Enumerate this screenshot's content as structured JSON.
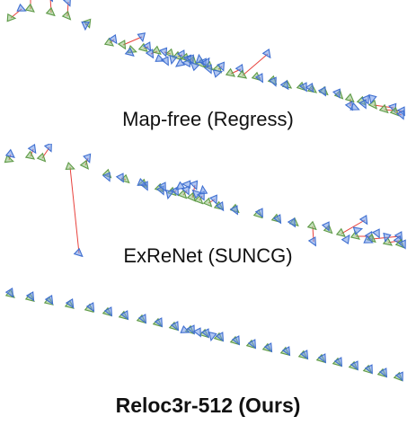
{
  "figure": {
    "colors": {
      "gt": "#8fc27a",
      "gt_edge": "#5f9a48",
      "pred": "#6f97e8",
      "pred_edge": "#3f6fd0",
      "error_line": "#e8413c"
    },
    "panels": [
      {
        "id": "map-free",
        "caption": "Map-free (Regress)",
        "caption_weight": "regular",
        "trajectory": [
          [
            12,
            20,
            24,
            10
          ],
          [
            34,
            10,
            34,
            -8
          ],
          [
            57,
            14,
            56,
            -3
          ],
          [
            75,
            18,
            76,
            2
          ],
          [
            98,
            26,
            95,
            28
          ],
          [
            122,
            48,
            127,
            44
          ],
          [
            137,
            50,
            158,
            41
          ],
          [
            147,
            56,
            145,
            59
          ],
          [
            160,
            54,
            165,
            52
          ],
          [
            175,
            57,
            168,
            60
          ],
          [
            190,
            60,
            183,
            58
          ],
          [
            198,
            63,
            203,
            61
          ],
          [
            207,
            65,
            210,
            66
          ],
          [
            215,
            68,
            213,
            66
          ],
          [
            224,
            71,
            227,
            70
          ],
          [
            233,
            74,
            233,
            77
          ],
          [
            243,
            77,
            247,
            74
          ],
          [
            257,
            82,
            268,
            77
          ],
          [
            270,
            84,
            298,
            60
          ],
          [
            286,
            86,
            290,
            87
          ],
          [
            304,
            90,
            305,
            91
          ],
          [
            320,
            95,
            318,
            95
          ],
          [
            336,
            97,
            339,
            97
          ],
          [
            348,
            100,
            346,
            98
          ],
          [
            361,
            102,
            360,
            102
          ],
          [
            378,
            106,
            376,
            104
          ],
          [
            390,
            110,
            390,
            118
          ],
          [
            403,
            113,
            408,
            111
          ],
          [
            416,
            117,
            438,
            120
          ],
          [
            428,
            122,
            448,
            124
          ],
          [
            440,
            125,
            447,
            128
          ]
        ],
        "extra_pred": [
          [
            178,
            66
          ],
          [
            185,
            68
          ],
          [
            192,
            66
          ],
          [
            200,
            71
          ],
          [
            208,
            70
          ],
          [
            216,
            73
          ],
          [
            222,
            66
          ],
          [
            230,
            69
          ],
          [
            242,
            81
          ],
          [
            395,
            120
          ],
          [
            405,
            116
          ],
          [
            414,
            110
          ]
        ]
      },
      {
        "id": "exrenet",
        "caption": "ExReNet (SUNCG)",
        "caption_weight": "regular",
        "trajectory": [
          [
            10,
            18,
            12,
            12
          ],
          [
            34,
            14,
            37,
            6
          ],
          [
            47,
            16,
            55,
            4
          ],
          [
            78,
            26,
            88,
            122
          ],
          [
            95,
            24,
            98,
            16
          ],
          [
            120,
            34,
            120,
            37
          ],
          [
            140,
            40,
            135,
            38
          ],
          [
            160,
            45,
            162,
            47
          ],
          [
            178,
            50,
            180,
            52
          ],
          [
            192,
            54,
            196,
            53
          ],
          [
            204,
            57,
            208,
            52
          ],
          [
            214,
            60,
            217,
            46
          ],
          [
            222,
            63,
            225,
            58
          ],
          [
            232,
            66,
            239,
            62
          ],
          [
            244,
            70,
            246,
            70
          ],
          [
            262,
            73,
            262,
            74
          ],
          [
            288,
            79,
            290,
            77
          ],
          [
            308,
            84,
            310,
            84
          ],
          [
            328,
            88,
            326,
            88
          ],
          [
            348,
            92,
            349,
            109
          ],
          [
            366,
            96,
            364,
            92
          ],
          [
            380,
            100,
            406,
            85
          ],
          [
            396,
            103,
            412,
            103
          ],
          [
            414,
            106,
            445,
            103
          ],
          [
            432,
            110,
            444,
            108
          ],
          [
            446,
            112,
            449,
            112
          ]
        ],
        "extra_pred": [
          [
            158,
            44
          ],
          [
            182,
            48
          ],
          [
            188,
            56
          ],
          [
            200,
            48
          ],
          [
            208,
            45
          ],
          [
            218,
            55
          ],
          [
            226,
            52
          ],
          [
            386,
            106
          ],
          [
            398,
            96
          ],
          [
            410,
            108
          ],
          [
            420,
            100
          ],
          [
            430,
            104
          ]
        ]
      },
      {
        "id": "reloc3r",
        "caption": "Reloc3r-512 (Ours)",
        "caption_weight": "bold",
        "trajectory": [
          [
            12,
            10,
            12,
            8
          ],
          [
            34,
            14,
            35,
            12
          ],
          [
            55,
            18,
            56,
            16
          ],
          [
            78,
            22,
            79,
            20
          ],
          [
            100,
            26,
            102,
            24
          ],
          [
            120,
            30,
            122,
            29
          ],
          [
            138,
            34,
            140,
            33
          ],
          [
            158,
            38,
            160,
            37
          ],
          [
            176,
            42,
            178,
            41
          ],
          [
            194,
            46,
            196,
            45
          ],
          [
            212,
            50,
            214,
            49
          ],
          [
            228,
            54,
            230,
            53
          ],
          [
            244,
            58,
            246,
            57
          ],
          [
            262,
            62,
            264,
            61
          ],
          [
            280,
            66,
            282,
            65
          ],
          [
            298,
            70,
            300,
            69
          ],
          [
            318,
            74,
            320,
            73
          ],
          [
            338,
            78,
            340,
            77
          ],
          [
            358,
            82,
            360,
            81
          ],
          [
            376,
            86,
            378,
            85
          ],
          [
            394,
            90,
            396,
            89
          ],
          [
            410,
            94,
            412,
            93
          ],
          [
            426,
            98,
            428,
            97
          ],
          [
            444,
            102,
            446,
            101
          ]
        ],
        "extra_pred": [
          [
            206,
            50
          ],
          [
            221,
            52
          ],
          [
            236,
            56
          ]
        ]
      }
    ]
  }
}
